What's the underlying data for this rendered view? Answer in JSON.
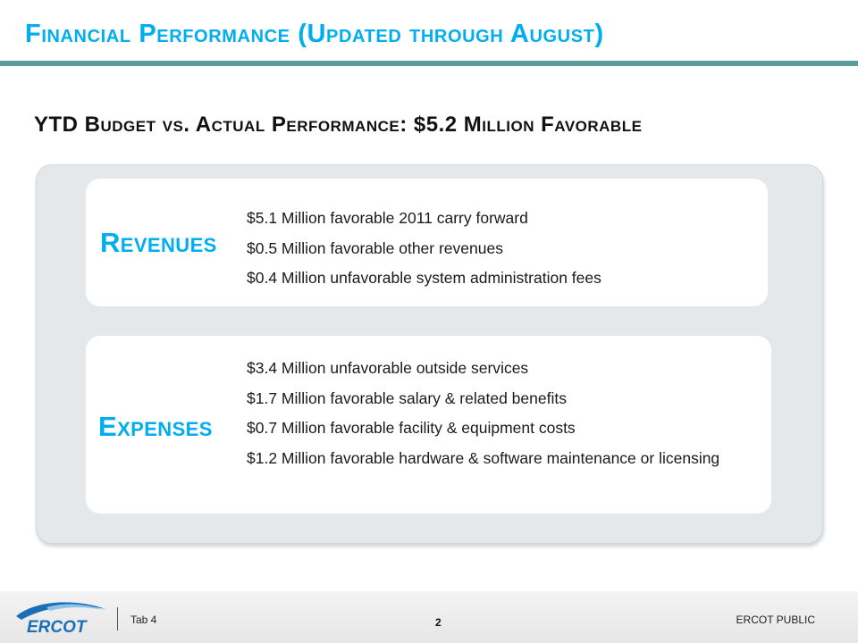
{
  "header": {
    "title": "Financial Performance (Updated through August)"
  },
  "subtitle": "YTD Budget vs. Actual Performance: $5.2 Million Favorable",
  "revenues": {
    "label": "Revenues",
    "items": [
      "$5.1 Million favorable 2011 carry forward",
      "$0.5 Million favorable other revenues",
      "$0.4 Million unfavorable system administration fees"
    ]
  },
  "expenses": {
    "label": "Expenses",
    "items": [
      "$3.4 Million unfavorable outside services",
      "$1.7 Million favorable salary & related benefits",
      "$0.7 Million favorable facility & equipment costs",
      "$1.2 Million favorable hardware & software maintenance or licensing"
    ]
  },
  "footer": {
    "logo_text": "ERCOT",
    "tab": "Tab 4",
    "page_number": "2",
    "classification": "ERCOT PUBLIC"
  },
  "colors": {
    "accent": "#00aeef",
    "rule": "#5d9a9a",
    "panel": "#e4e8eb",
    "logo_blue": "#1b6fb5"
  }
}
